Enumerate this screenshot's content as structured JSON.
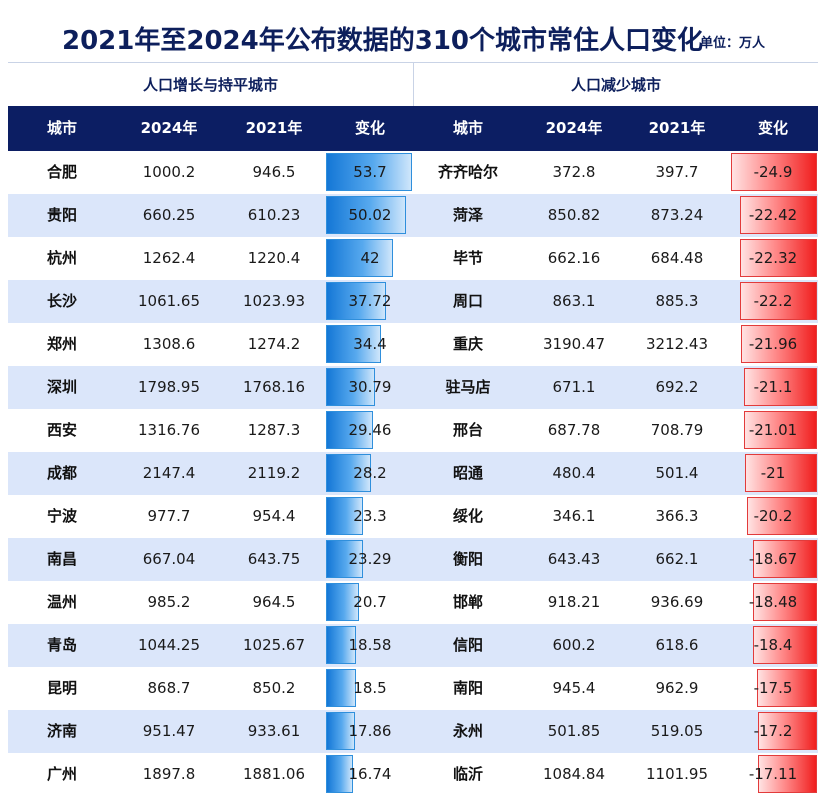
{
  "title": "2021年至2024年公布数据的310个城市常住人口变化",
  "unit": "单位：万人",
  "sections": {
    "left": "人口增长与持平城市",
    "right": "人口减少城市"
  },
  "headers": [
    "城市",
    "2024年",
    "2021年",
    "变化",
    "城市",
    "2024年",
    "2021年",
    "变化"
  ],
  "colors": {
    "header_bg": "#0c1e63",
    "title": "#0d1f5c",
    "row_alt": "#dbe6fa",
    "increase_bar": "#1477d6",
    "decrease_bar": "#f01e1e"
  },
  "chart_data": {
    "type": "table",
    "increase": [
      {
        "city": "合肥",
        "y2024": "1000.2",
        "y2021": "946.5",
        "change": 53.7
      },
      {
        "city": "贵阳",
        "y2024": "660.25",
        "y2021": "610.23",
        "change": 50.02
      },
      {
        "city": "杭州",
        "y2024": "1262.4",
        "y2021": "1220.4",
        "change": 42
      },
      {
        "city": "长沙",
        "y2024": "1061.65",
        "y2021": "1023.93",
        "change": 37.72
      },
      {
        "city": "郑州",
        "y2024": "1308.6",
        "y2021": "1274.2",
        "change": 34.4
      },
      {
        "city": "深圳",
        "y2024": "1798.95",
        "y2021": "1768.16",
        "change": 30.79
      },
      {
        "city": "西安",
        "y2024": "1316.76",
        "y2021": "1287.3",
        "change": 29.46
      },
      {
        "city": "成都",
        "y2024": "2147.4",
        "y2021": "2119.2",
        "change": 28.2
      },
      {
        "city": "宁波",
        "y2024": "977.7",
        "y2021": "954.4",
        "change": 23.3
      },
      {
        "city": "南昌",
        "y2024": "667.04",
        "y2021": "643.75",
        "change": 23.29
      },
      {
        "city": "温州",
        "y2024": "985.2",
        "y2021": "964.5",
        "change": 20.7
      },
      {
        "city": "青岛",
        "y2024": "1044.25",
        "y2021": "1025.67",
        "change": 18.58
      },
      {
        "city": "昆明",
        "y2024": "868.7",
        "y2021": "850.2",
        "change": 18.5
      },
      {
        "city": "济南",
        "y2024": "951.47",
        "y2021": "933.61",
        "change": 17.86
      },
      {
        "city": "广州",
        "y2024": "1897.8",
        "y2021": "1881.06",
        "change": 16.74
      }
    ],
    "decrease": [
      {
        "city": "齐齐哈尔",
        "y2024": "372.8",
        "y2021": "397.7",
        "change": -24.9
      },
      {
        "city": "菏泽",
        "y2024": "850.82",
        "y2021": "873.24",
        "change": -22.42
      },
      {
        "city": "毕节",
        "y2024": "662.16",
        "y2021": "684.48",
        "change": -22.32
      },
      {
        "city": "周口",
        "y2024": "863.1",
        "y2021": "885.3",
        "change": -22.2
      },
      {
        "city": "重庆",
        "y2024": "3190.47",
        "y2021": "3212.43",
        "change": -21.96
      },
      {
        "city": "驻马店",
        "y2024": "671.1",
        "y2021": "692.2",
        "change": -21.1
      },
      {
        "city": "邢台",
        "y2024": "687.78",
        "y2021": "708.79",
        "change": -21.01
      },
      {
        "city": "昭通",
        "y2024": "480.4",
        "y2021": "501.4",
        "change": -21
      },
      {
        "city": "绥化",
        "y2024": "346.1",
        "y2021": "366.3",
        "change": -20.2
      },
      {
        "city": "衡阳",
        "y2024": "643.43",
        "y2021": "662.1",
        "change": -18.67
      },
      {
        "city": "邯郸",
        "y2024": "918.21",
        "y2021": "936.69",
        "change": -18.48
      },
      {
        "city": "信阳",
        "y2024": "600.2",
        "y2021": "618.6",
        "change": -18.4
      },
      {
        "city": "南阳",
        "y2024": "945.4",
        "y2021": "962.9",
        "change": -17.5
      },
      {
        "city": "永州",
        "y2024": "501.85",
        "y2021": "519.05",
        "change": -17.2
      },
      {
        "city": "临沂",
        "y2024": "1084.84",
        "y2021": "1101.95",
        "change": -17.11
      }
    ]
  }
}
